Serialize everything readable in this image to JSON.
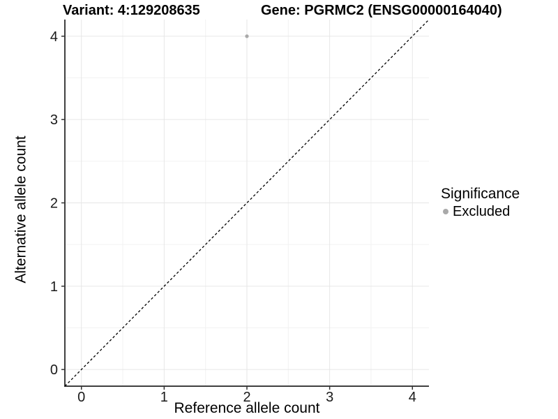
{
  "figure": {
    "title_left": "Variant: 4:129208635",
    "title_right": "Gene: PGRMC2 (ENSG00000164040)"
  },
  "chart_data": {
    "type": "scatter",
    "xlabel": "Reference allele count",
    "ylabel": "Alternative allele count",
    "xlim": [
      -0.2,
      4.2
    ],
    "ylim": [
      -0.2,
      4.2
    ],
    "xticks": [
      0,
      1,
      2,
      3,
      4
    ],
    "yticks": [
      0,
      1,
      2,
      3,
      4
    ],
    "minor_gridlines_x": [
      0.5,
      1.5,
      2.5,
      3.5
    ],
    "minor_gridlines_y": [
      0.5,
      1.5,
      2.5,
      3.5
    ],
    "grid": "major+minor",
    "series": [
      {
        "name": "Excluded",
        "color": "#a9a9a9",
        "marker": "circle",
        "points": [
          {
            "x": 2,
            "y": 4
          }
        ]
      }
    ],
    "identity_line": {
      "style": "dashed",
      "color": "#000000",
      "from": [
        -0.2,
        -0.2
      ],
      "to": [
        4.2,
        4.2
      ]
    },
    "legend": {
      "title": "Significance",
      "position": "right",
      "items": [
        {
          "label": "Excluded",
          "color": "#a9a9a9"
        }
      ]
    }
  },
  "colors": {
    "background": "#ffffff",
    "grid_major": "#e6e6e6",
    "grid_minor": "#f2f2f2",
    "axis_line": "#404040",
    "tick_mark": "#333333",
    "tick_text": "#1a1a1a",
    "title_text": "#000000",
    "point": "#a9a9a9",
    "ref_line": "#000000"
  }
}
